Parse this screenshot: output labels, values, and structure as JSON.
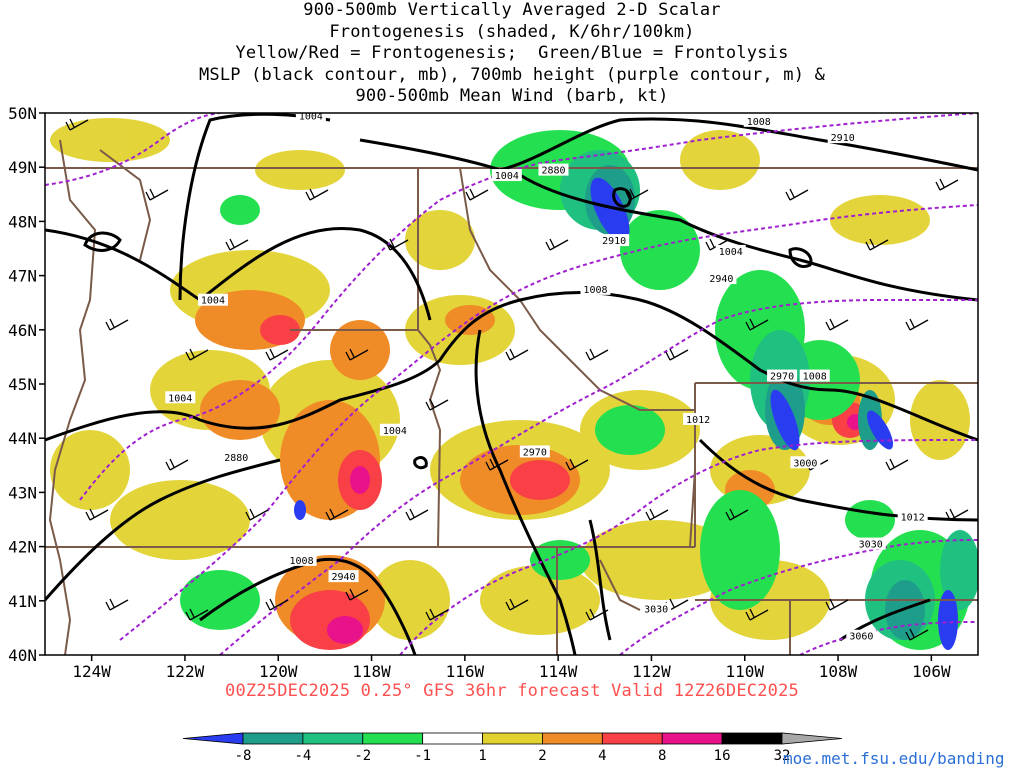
{
  "title_lines": [
    "900-500mb Vertically Averaged 2-D Scalar",
    "Frontogenesis (shaded, K/6hr/100km)",
    "Yellow/Red = Frontogenesis;  Green/Blue = Frontolysis",
    "MSLP (black contour, mb), 700mb height (purple contour, m) &",
    "900-500mb Mean Wind (barb, kt)"
  ],
  "lat_labels": [
    "50N",
    "49N",
    "48N",
    "47N",
    "46N",
    "45N",
    "44N",
    "43N",
    "42N",
    "41N",
    "40N"
  ],
  "lat_values": [
    50,
    49,
    48,
    47,
    46,
    45,
    44,
    43,
    42,
    41,
    40
  ],
  "lon_labels": [
    "124W",
    "122W",
    "120W",
    "118W",
    "116W",
    "114W",
    "112W",
    "110W",
    "108W",
    "106W"
  ],
  "lon_values": [
    -124,
    -122,
    -120,
    -118,
    -116,
    -114,
    -112,
    -110,
    -108,
    -106
  ],
  "extent": {
    "lon_min": -125.0,
    "lon_max": -105.0,
    "lat_min": 40.0,
    "lat_max": 50.0
  },
  "footer": "00Z25DEC2025 0.25° GFS 36hr forecast Valid 12Z26DEC2025",
  "credit": "moe.met.fsu.edu/banding",
  "colorbar": {
    "labels": [
      "-8",
      "-4",
      "-2",
      "-1",
      "1",
      "2",
      "4",
      "8",
      "16",
      "32"
    ],
    "colors": [
      "#2a3cf0",
      "#1e9e8a",
      "#20c080",
      "#24e050",
      "#ffffff",
      "#e2d230",
      "#f08c28",
      "#f84046",
      "#e8128a",
      "#000000",
      "#a8a8a8"
    ]
  },
  "mslp_labels": [
    {
      "text": "1004",
      "lon": -119.3,
      "lat": 49.9
    },
    {
      "text": "1004",
      "lon": -115.1,
      "lat": 48.8
    },
    {
      "text": "1004",
      "lon": -121.4,
      "lat": 46.5
    },
    {
      "text": "1004",
      "lon": -122.1,
      "lat": 44.7
    },
    {
      "text": "1004",
      "lon": -117.5,
      "lat": 44.1
    },
    {
      "text": "1008",
      "lon": -109.7,
      "lat": 49.8
    },
    {
      "text": "1008",
      "lon": -113.2,
      "lat": 46.7
    },
    {
      "text": "1004",
      "lon": -110.3,
      "lat": 47.4
    },
    {
      "text": "1008",
      "lon": -108.5,
      "lat": 45.1
    },
    {
      "text": "1012",
      "lon": -111.0,
      "lat": 44.3
    },
    {
      "text": "1012",
      "lon": -106.4,
      "lat": 42.5
    },
    {
      "text": "1008",
      "lon": -119.5,
      "lat": 41.7
    }
  ],
  "height_labels": [
    {
      "text": "2880",
      "lon": -114.1,
      "lat": 48.9
    },
    {
      "text": "2910",
      "lon": -107.9,
      "lat": 49.5
    },
    {
      "text": "2910",
      "lon": -112.8,
      "lat": 47.6
    },
    {
      "text": "2940",
      "lon": -110.5,
      "lat": 46.9
    },
    {
      "text": "2970",
      "lon": -109.2,
      "lat": 45.1
    },
    {
      "text": "2880",
      "lon": -120.9,
      "lat": 43.6
    },
    {
      "text": "2970",
      "lon": -114.5,
      "lat": 43.7
    },
    {
      "text": "3000",
      "lon": -108.7,
      "lat": 43.5
    },
    {
      "text": "2940",
      "lon": -118.6,
      "lat": 41.4
    },
    {
      "text": "3030",
      "lon": -111.9,
      "lat": 40.8
    },
    {
      "text": "3030",
      "lon": -107.3,
      "lat": 42.0
    },
    {
      "text": "3060",
      "lon": -107.5,
      "lat": 40.3
    }
  ]
}
